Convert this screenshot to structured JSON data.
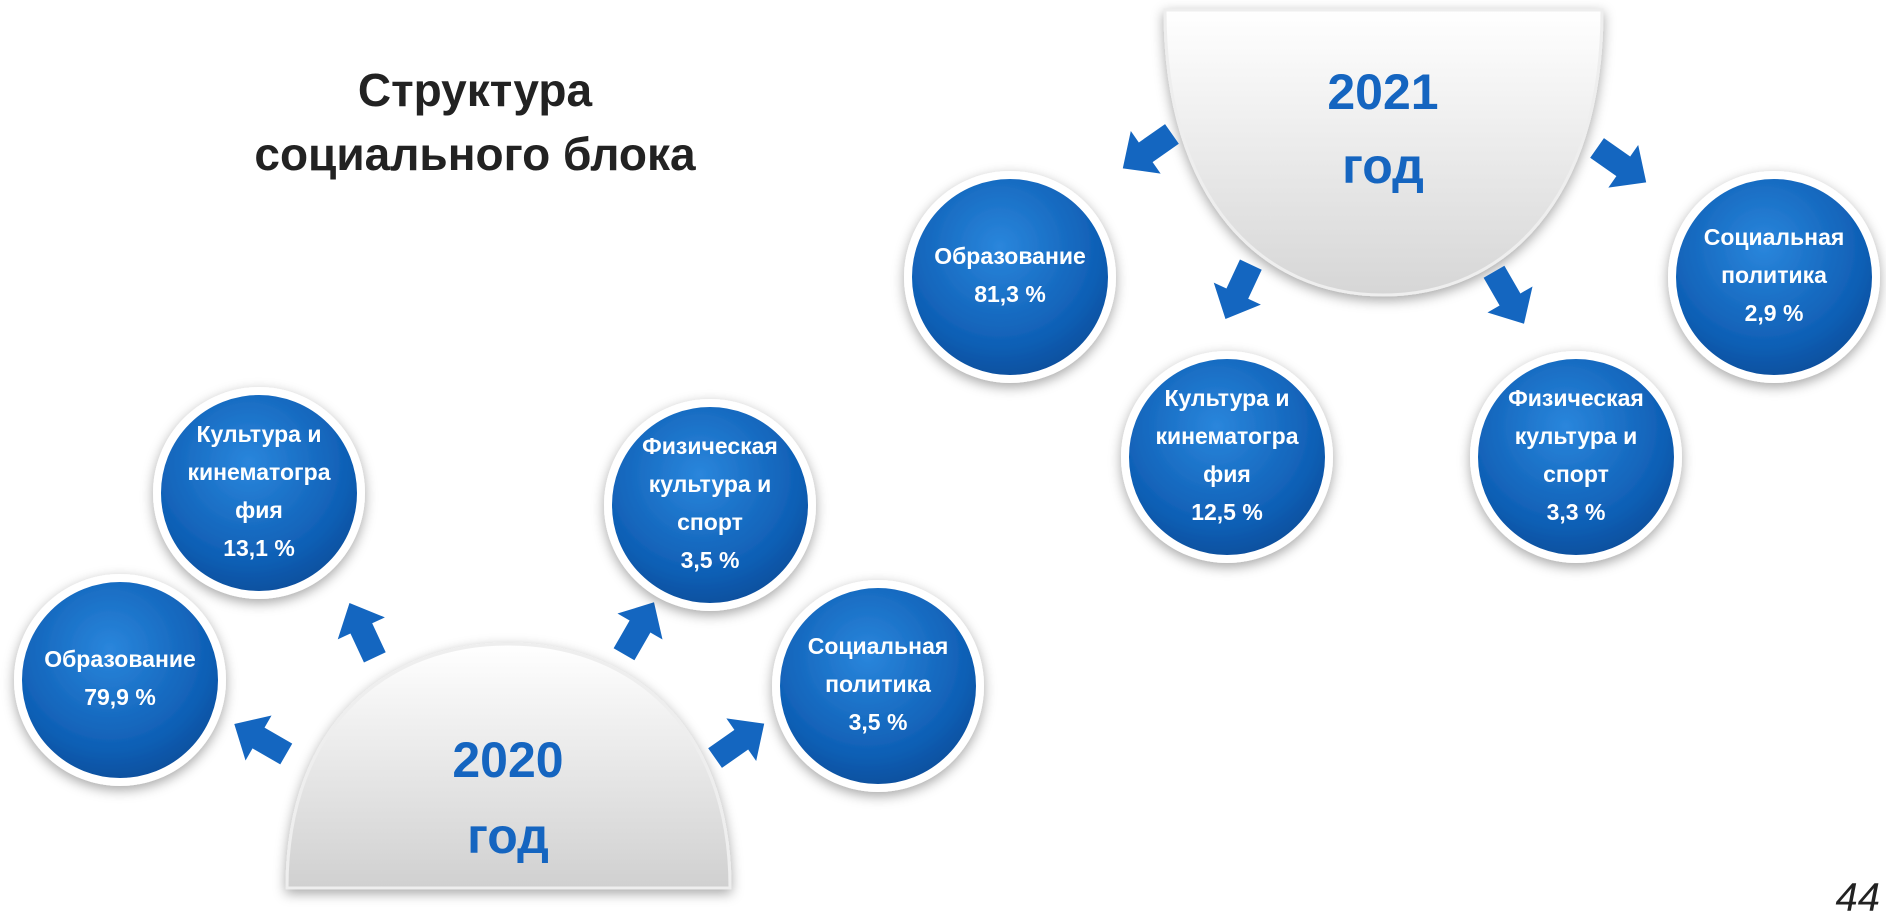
{
  "title": {
    "lines": [
      "Структура",
      "социального блока"
    ]
  },
  "groups": [
    {
      "year": "2020",
      "unit": "год",
      "items": [
        {
          "lines": [
            "Образование"
          ],
          "value": "79,9 %"
        },
        {
          "lines": [
            "Культура и",
            "кинематогра",
            "фия"
          ],
          "value": "13,1 %"
        },
        {
          "lines": [
            "Физическая",
            "культура и",
            "спорт"
          ],
          "value": "3,5 %"
        },
        {
          "lines": [
            "Социальная",
            "политика"
          ],
          "value": "3,5 %"
        }
      ]
    },
    {
      "year": "2021",
      "unit": "год",
      "items": [
        {
          "lines": [
            "Образование"
          ],
          "value": "81,3 %"
        },
        {
          "lines": [
            "Культура и",
            "кинематогра",
            "фия"
          ],
          "value": "12,5 %"
        },
        {
          "lines": [
            "Физическая",
            "культура и",
            "спорт"
          ],
          "value": "3,3 %"
        },
        {
          "lines": [
            "Социальная",
            "политика"
          ],
          "value": "2,9 %"
        }
      ]
    }
  ],
  "page_number": "44"
}
